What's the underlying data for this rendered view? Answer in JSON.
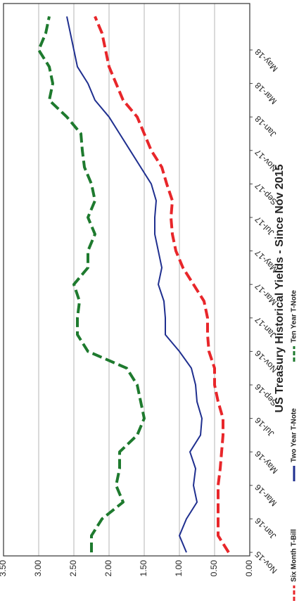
{
  "chart_data": {
    "type": "line",
    "title": "US Treasury Historical Yields - Since Nov 2015",
    "categories": [
      "Nov-15",
      null,
      "Jan-16",
      null,
      "Mar-16",
      null,
      "May-16",
      null,
      "Jul-16",
      null,
      "Sep-16",
      null,
      "Nov-16",
      null,
      "Jan-17",
      null,
      "Mar-17",
      null,
      "May-17",
      null,
      "Jul-17",
      null,
      "Sep-17",
      null,
      "Nov-17",
      null,
      "Jan-18",
      null,
      "Mar-18",
      null,
      "May-18",
      null,
      null
    ],
    "series": [
      {
        "name": "Six Month T-Bill",
        "color": "#e8262a",
        "dash": true,
        "values": [
          0.3,
          0.45,
          0.45,
          0.45,
          0.45,
          0.42,
          0.4,
          0.38,
          0.38,
          0.45,
          0.5,
          0.5,
          0.58,
          0.6,
          0.6,
          0.65,
          0.8,
          0.95,
          1.05,
          1.1,
          1.12,
          1.1,
          1.18,
          1.25,
          1.4,
          1.5,
          1.6,
          1.8,
          1.9,
          2.0,
          2.05,
          2.1,
          2.2
        ]
      },
      {
        "name": "Two Year T-Note",
        "color": "#1f2f8f",
        "dash": false,
        "values": [
          0.9,
          1.0,
          0.9,
          0.75,
          0.8,
          0.77,
          0.85,
          0.7,
          0.68,
          0.75,
          0.77,
          0.83,
          1.0,
          1.2,
          1.2,
          1.22,
          1.3,
          1.25,
          1.3,
          1.35,
          1.35,
          1.33,
          1.4,
          1.55,
          1.7,
          1.85,
          2.0,
          2.2,
          2.3,
          2.45,
          2.5,
          2.55,
          2.6
        ]
      },
      {
        "name": "Ten Year T-Note",
        "color": "#1e7a2e",
        "dash": true,
        "values": [
          2.25,
          2.25,
          2.1,
          1.8,
          1.9,
          1.85,
          1.85,
          1.6,
          1.5,
          1.55,
          1.6,
          1.75,
          2.3,
          2.45,
          2.45,
          2.42,
          2.5,
          2.3,
          2.3,
          2.2,
          2.3,
          2.2,
          2.25,
          2.35,
          2.38,
          2.4,
          2.6,
          2.85,
          2.8,
          2.85,
          3.0,
          2.9,
          2.85
        ]
      }
    ],
    "ylim": [
      0,
      3.5
    ],
    "yticks": [
      {
        "value": 0,
        "label": "0.00"
      },
      {
        "value": 0.5,
        "label": "0.50"
      },
      {
        "value": 1,
        "label": "1.00"
      },
      {
        "value": 1.5,
        "label": "1.50"
      },
      {
        "value": 2,
        "label": "2.00"
      },
      {
        "value": 2.5,
        "label": "2.50"
      },
      {
        "value": 3,
        "label": "3.00"
      },
      {
        "value": 3.5,
        "label": "3.50"
      }
    ],
    "grid": true
  }
}
